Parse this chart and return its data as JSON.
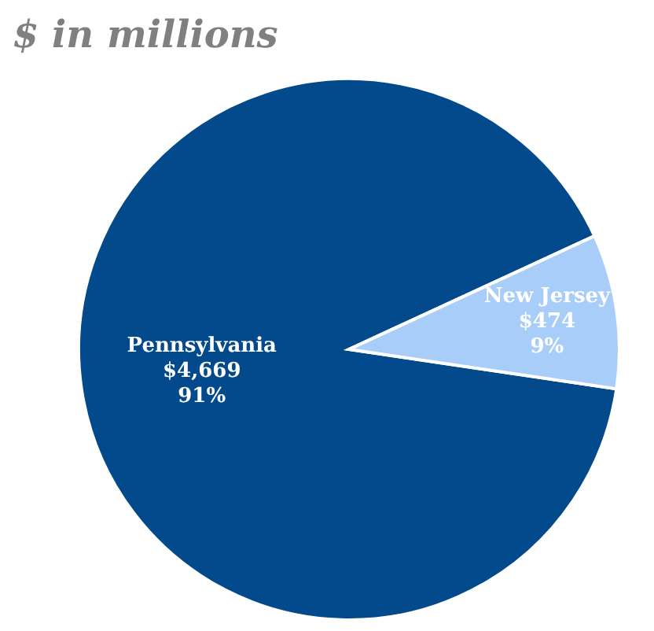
{
  "chart_data": {
    "type": "pie",
    "title": "$ in millions",
    "categories": [
      "Pennsylvania",
      "New Jersey"
    ],
    "values": [
      4669,
      474
    ],
    "colors": [
      "#034a8c",
      "#a9cdf9"
    ],
    "value_labels": [
      "$4,669\n91%",
      "$474\n9%"
    ],
    "legend": false
  }
}
